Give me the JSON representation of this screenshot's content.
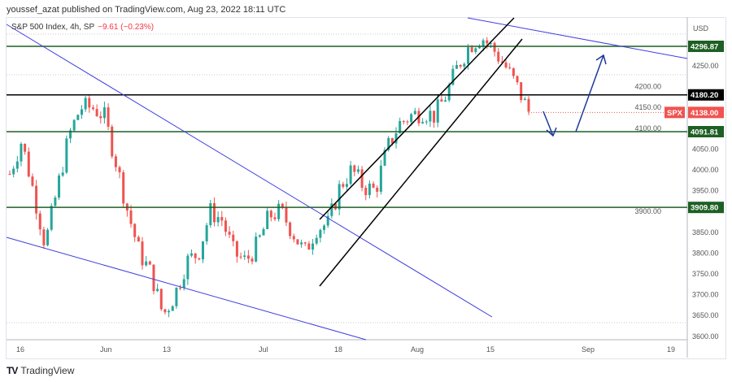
{
  "header": {
    "published": "youssef_azat published on TradingView.com, Aug 23, 2022 18:11 UTC"
  },
  "legend": {
    "symbol": "S&P 500 Index, 4h, SP",
    "change": "−9.61 (−0.23%)"
  },
  "axis": {
    "currency": "USD",
    "price_ticks": [
      "4250.00",
      "4200.00",
      "4150.00",
      "4100.00",
      "4050.00",
      "4000.00",
      "3950.00",
      "3900.00",
      "3850.00",
      "3800.00",
      "3750.00",
      "3700.00",
      "3650.00",
      "3600.00"
    ],
    "time_ticks": [
      "16",
      "Jun",
      "13",
      "Jul",
      "18",
      "Aug",
      "15",
      "Sep",
      "19"
    ]
  },
  "levels": [
    {
      "price": "4296.87",
      "color": "#1e5f24"
    },
    {
      "price": "4180.20",
      "color": "#000000"
    },
    {
      "price": "4091.81",
      "color": "#1e5f24"
    },
    {
      "price": "3909.80",
      "color": "#1e5f24"
    }
  ],
  "current": {
    "symbol": "SPX",
    "price": "4138.00",
    "color": "#f05350"
  },
  "colors": {
    "up": "#26a69a",
    "down": "#ef5350",
    "trend": "#3f3fe0",
    "arrow": "#1e3a9c"
  },
  "chart_data": {
    "type": "candlestick",
    "approx_close_waypoints": [
      3990,
      4070,
      3950,
      3820,
      3950,
      4080,
      4150,
      4150,
      4130,
      4020,
      3900,
      3800,
      3750,
      3650,
      3700,
      3780,
      3800,
      3900,
      3880,
      3800,
      3780,
      3820,
      3890,
      3900,
      3850,
      3800,
      3860,
      3870,
      3960,
      4000,
      3960,
      3950,
      4050,
      4110,
      4130,
      4140,
      4130,
      4180,
      4250,
      4300,
      4320,
      4290,
      4250,
      4200,
      4140
    ]
  },
  "footer": {
    "brand": "TradingView"
  }
}
